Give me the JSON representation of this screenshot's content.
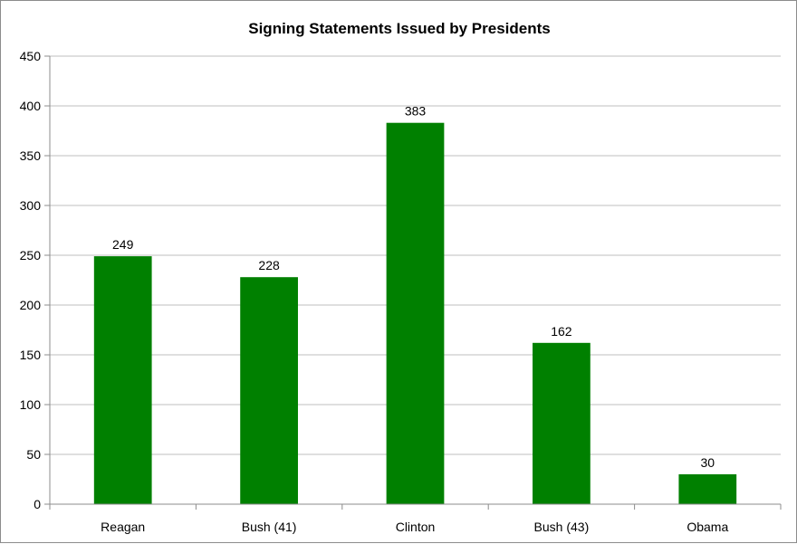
{
  "chart_data": {
    "type": "bar",
    "title": "Signing Statements Issued by Presidents",
    "xlabel": "",
    "ylabel": "",
    "categories": [
      "Reagan",
      "Bush (41)",
      "Clinton",
      "Bush (43)",
      "Obama"
    ],
    "values": [
      249,
      228,
      383,
      162,
      30
    ],
    "ylim": [
      0,
      450
    ],
    "yticks": [
      0,
      50,
      100,
      150,
      200,
      250,
      300,
      350,
      400,
      450
    ],
    "grid": true,
    "legend": "none",
    "bar_color": "#008000",
    "data_labels": true
  }
}
